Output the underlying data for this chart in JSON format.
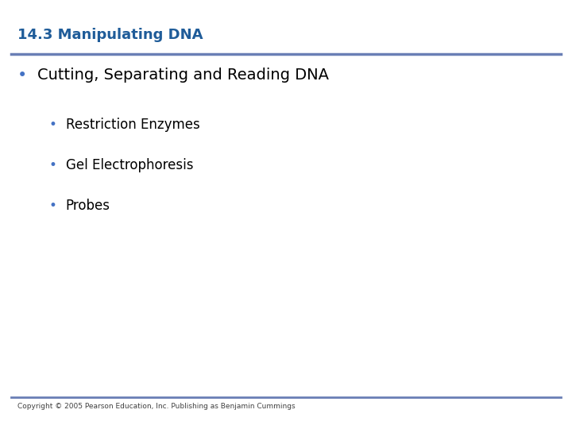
{
  "title": "14.3 Manipulating DNA",
  "title_color": "#1F5C99",
  "title_fontsize": 13,
  "title_bold": true,
  "background_color": "#FFFFFF",
  "header_line_color": "#6A7FB5",
  "footer_line_color": "#6A7FB5",
  "bullet1_text": "Cutting, Separating and Reading DNA",
  "bullet1_color": "#000000",
  "bullet1_fontsize": 14,
  "bullet1_bold": false,
  "bullet1_bullet_color": "#4472C4",
  "sub_bullets": [
    "Restriction Enzymes",
    "Gel Electrophoresis",
    "Probes"
  ],
  "sub_bullet_color": "#000000",
  "sub_bullet_fontsize": 12,
  "sub_bullet_dot_color": "#4472C4",
  "footer_text": "Copyright © 2005 Pearson Education, Inc. Publishing as Benjamin Cummings",
  "footer_fontsize": 6.5,
  "footer_color": "#404040"
}
